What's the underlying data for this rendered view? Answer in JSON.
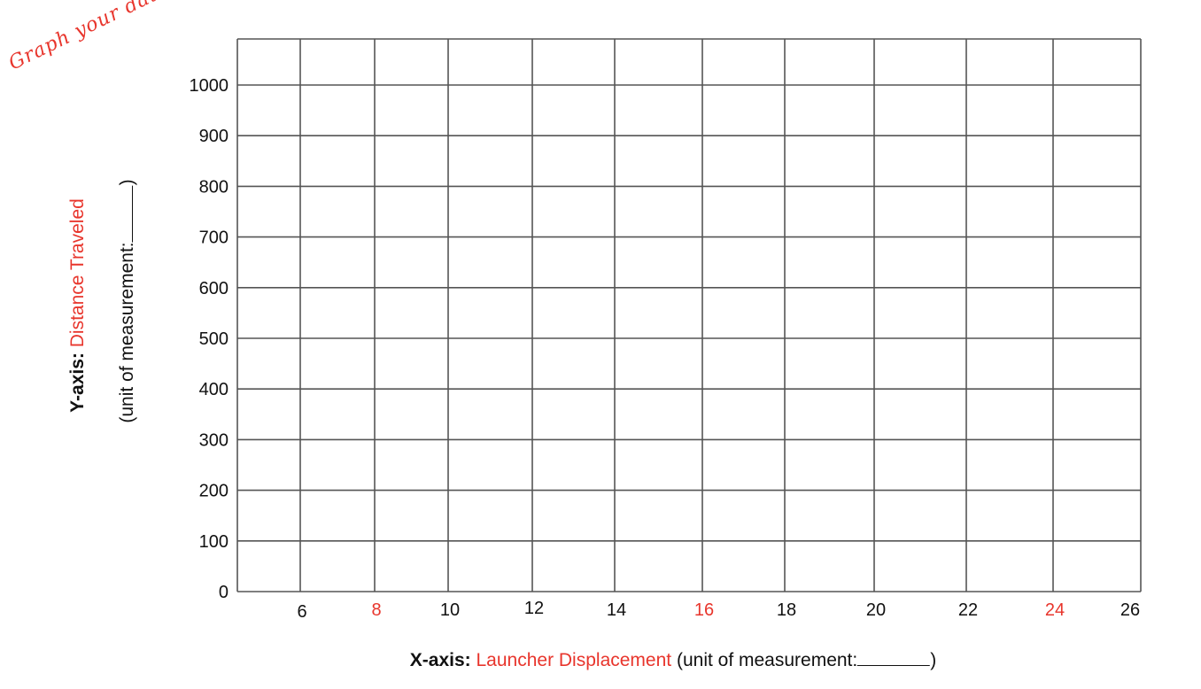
{
  "handwritten_note": "Graph your data!",
  "y_axis": {
    "prefix": "Y-axis:",
    "name": "Distance Traveled",
    "unit_prefix": "(unit of measurement:",
    "unit_suffix": ")"
  },
  "x_axis": {
    "prefix": "X-axis:",
    "name": "Launcher Displacement",
    "unit_prefix": "(unit  of measurement:",
    "unit_suffix": ")"
  },
  "colors": {
    "accent": "#e8352c",
    "grid": "#555555",
    "text": "#111111"
  },
  "chart_data": {
    "type": "line",
    "title": "",
    "xlabel": "X-axis: Launcher Displacement (unit of measurement:________)",
    "ylabel": "Y-axis: Distance Traveled (unit of measurement:________)",
    "x_ticks": [
      6,
      8,
      10,
      12,
      14,
      16,
      18,
      20,
      22,
      24,
      26
    ],
    "x_ticks_highlighted": [
      8,
      16,
      24
    ],
    "y_ticks": [
      0,
      100,
      200,
      300,
      400,
      500,
      600,
      700,
      800,
      900,
      1000
    ],
    "grid": true,
    "series": []
  }
}
